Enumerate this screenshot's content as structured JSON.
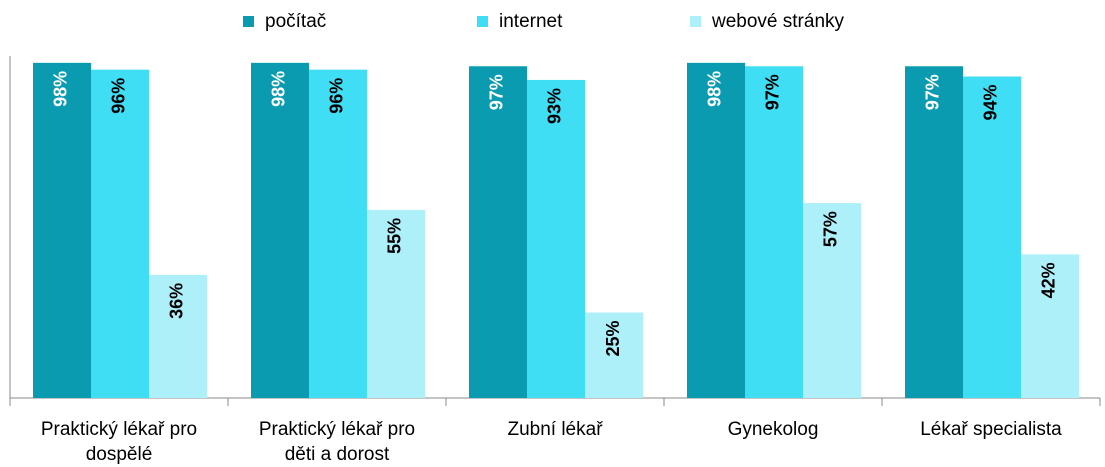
{
  "chart_data": {
    "type": "bar",
    "categories": [
      "Praktický lékař pro dospělé",
      "Praktický lékař pro děti a dorost",
      "Zubní lékař",
      "Gynekolog",
      "Lékař specialista"
    ],
    "series": [
      {
        "name": "počítač",
        "color": "#0a9bb1",
        "label_color": "#ffffff",
        "values": [
          98,
          98,
          97,
          98,
          97
        ],
        "value_labels": [
          "98%",
          "98%",
          "97%",
          "98%",
          "97%"
        ]
      },
      {
        "name": "internet",
        "color": "#3fdef5",
        "label_color": "#000000",
        "values": [
          96,
          96,
          93,
          97,
          94
        ],
        "value_labels": [
          "96%",
          "96%",
          "93%",
          "97%",
          "94%"
        ]
      },
      {
        "name": "webové stránky",
        "color": "#aef0fa",
        "label_color": "#000000",
        "values": [
          36,
          55,
          25,
          57,
          42
        ],
        "value_labels": [
          "36%",
          "55%",
          "25%",
          "57%",
          "42%"
        ]
      }
    ],
    "ylim": [
      0,
      100
    ]
  }
}
